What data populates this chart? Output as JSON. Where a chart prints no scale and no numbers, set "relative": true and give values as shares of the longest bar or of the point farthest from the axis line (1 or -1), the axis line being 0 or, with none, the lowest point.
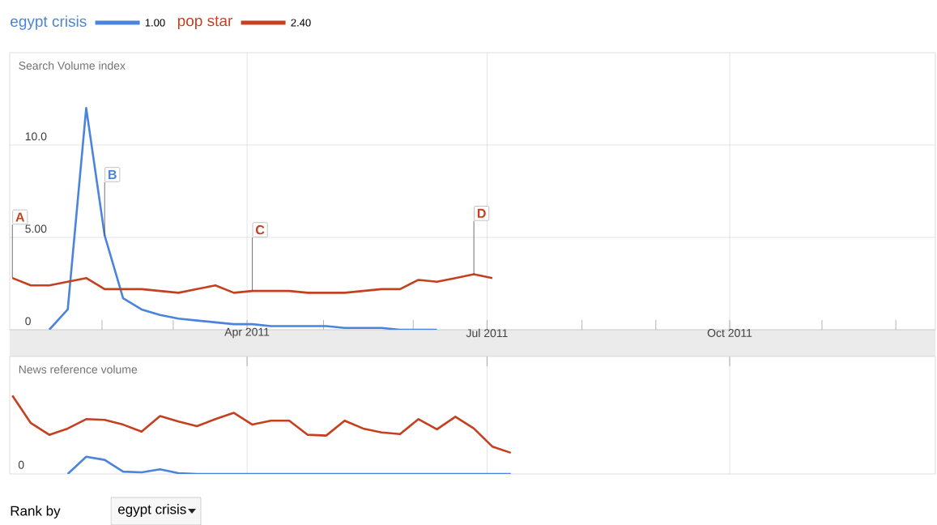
{
  "chart_data": [
    {
      "type": "line",
      "ylabel": "Search Volume index",
      "legend": "top left",
      "grid": true,
      "x": [
        "2011-01-02",
        "2011-01-09",
        "2011-01-16",
        "2011-01-23",
        "2011-01-30",
        "2011-02-06",
        "2011-02-13",
        "2011-02-20",
        "2011-02-27",
        "2011-03-06",
        "2011-03-13",
        "2011-03-20",
        "2011-03-27",
        "2011-04-03",
        "2011-04-10",
        "2011-04-17",
        "2011-04-24",
        "2011-05-01",
        "2011-05-08",
        "2011-05-15",
        "2011-05-22",
        "2011-05-29",
        "2011-06-05",
        "2011-06-12",
        "2011-06-19",
        "2011-06-26",
        "2011-07-03"
      ],
      "series": [
        {
          "name": "egypt crisis",
          "color": "#4a84dc",
          "values": [
            null,
            null,
            0,
            1.1,
            12.0,
            5.1,
            1.7,
            1.1,
            0.8,
            0.6,
            0.5,
            0.4,
            0.3,
            0.3,
            0.2,
            0.2,
            0.2,
            0.2,
            0.1,
            0.1,
            0.1,
            0.0,
            0.0,
            0.0,
            null,
            null,
            null
          ]
        },
        {
          "name": "pop star",
          "color": "#c4401f",
          "values": [
            2.8,
            2.4,
            2.4,
            2.6,
            2.8,
            2.2,
            2.2,
            2.2,
            2.1,
            2.0,
            2.2,
            2.4,
            2.0,
            2.1,
            2.1,
            2.1,
            2.0,
            2.0,
            2.0,
            2.1,
            2.2,
            2.2,
            2.7,
            2.6,
            2.8,
            3.0,
            2.8
          ]
        }
      ],
      "xlim": [
        "2011-01-01",
        "2011-12-18"
      ],
      "xticks": [
        {
          "value": "2011-02-05",
          "label": null
        },
        {
          "value": "2011-03-04",
          "label": null
        },
        {
          "value": "2011-04-01",
          "label": "Apr 2011"
        },
        {
          "value": "2011-04-30",
          "label": null
        },
        {
          "value": "2011-06-03",
          "label": null
        },
        {
          "value": "2011-07-01",
          "label": "Jul 2011"
        },
        {
          "value": "2011-08-06",
          "label": null
        },
        {
          "value": "2011-09-03",
          "label": null
        },
        {
          "value": "2011-10-01",
          "label": "Oct 2011"
        },
        {
          "value": "2011-11-05",
          "label": null
        },
        {
          "value": "2011-12-03",
          "label": null
        }
      ],
      "ylim": [
        0,
        15
      ],
      "yticks": [
        0,
        {
          "value": 5,
          "label": "5.00"
        },
        {
          "value": 10,
          "label": "10.0"
        }
      ],
      "annotations": [
        {
          "text": "A",
          "x": "2011-01-02",
          "y": 2.8
        },
        {
          "text": "B",
          "x": "2011-02-06",
          "y": 5.1
        },
        {
          "text": "C",
          "x": "2011-04-03",
          "y": 2.1
        },
        {
          "text": "D",
          "x": "2011-06-26",
          "y": 3.0
        },
        "1.00",
        "2.40"
      ]
    },
    {
      "type": "line",
      "ylabel": "News reference volume",
      "relative": true,
      "grid": "x",
      "tick_labels": false,
      "x": [
        "2011-01-02",
        "2011-01-09",
        "2011-01-16",
        "2011-01-23",
        "2011-01-30",
        "2011-02-06",
        "2011-02-13",
        "2011-02-20",
        "2011-02-27",
        "2011-03-06",
        "2011-03-13",
        "2011-03-20",
        "2011-03-27",
        "2011-04-03",
        "2011-04-10",
        "2011-04-17",
        "2011-04-24",
        "2011-05-01",
        "2011-05-08",
        "2011-05-15",
        "2011-05-22",
        "2011-05-29",
        "2011-06-05",
        "2011-06-12",
        "2011-06-19",
        "2011-06-26",
        "2011-07-03",
        "2011-07-10"
      ],
      "series": [
        {
          "color": "#4a84dc",
          "values": [
            null,
            null,
            null,
            0,
            0.22,
            0.18,
            0.03,
            0.02,
            0.06,
            0.01,
            0,
            0,
            0,
            0,
            0,
            0,
            0,
            0,
            0,
            0,
            0,
            0,
            0,
            0,
            0,
            0,
            0,
            0
          ]
        },
        {
          "color": "#c4401f",
          "values": [
            1.0,
            0.65,
            0.5,
            0.58,
            0.7,
            0.69,
            0.63,
            0.54,
            0.74,
            0.67,
            0.61,
            0.7,
            0.78,
            0.63,
            0.68,
            0.68,
            0.5,
            0.49,
            0.68,
            0.58,
            0.53,
            0.51,
            0.7,
            0.57,
            0.73,
            0.58,
            0.35,
            0.27
          ]
        }
      ],
      "xlim": [
        "2011-01-01",
        "2011-12-18"
      ],
      "xticks": [
        "2011-04-01",
        "2011-07-01",
        "2011-10-01"
      ],
      "annotations": [
        "0",
        "Rank by",
        "egypt crisis"
      ]
    }
  ]
}
